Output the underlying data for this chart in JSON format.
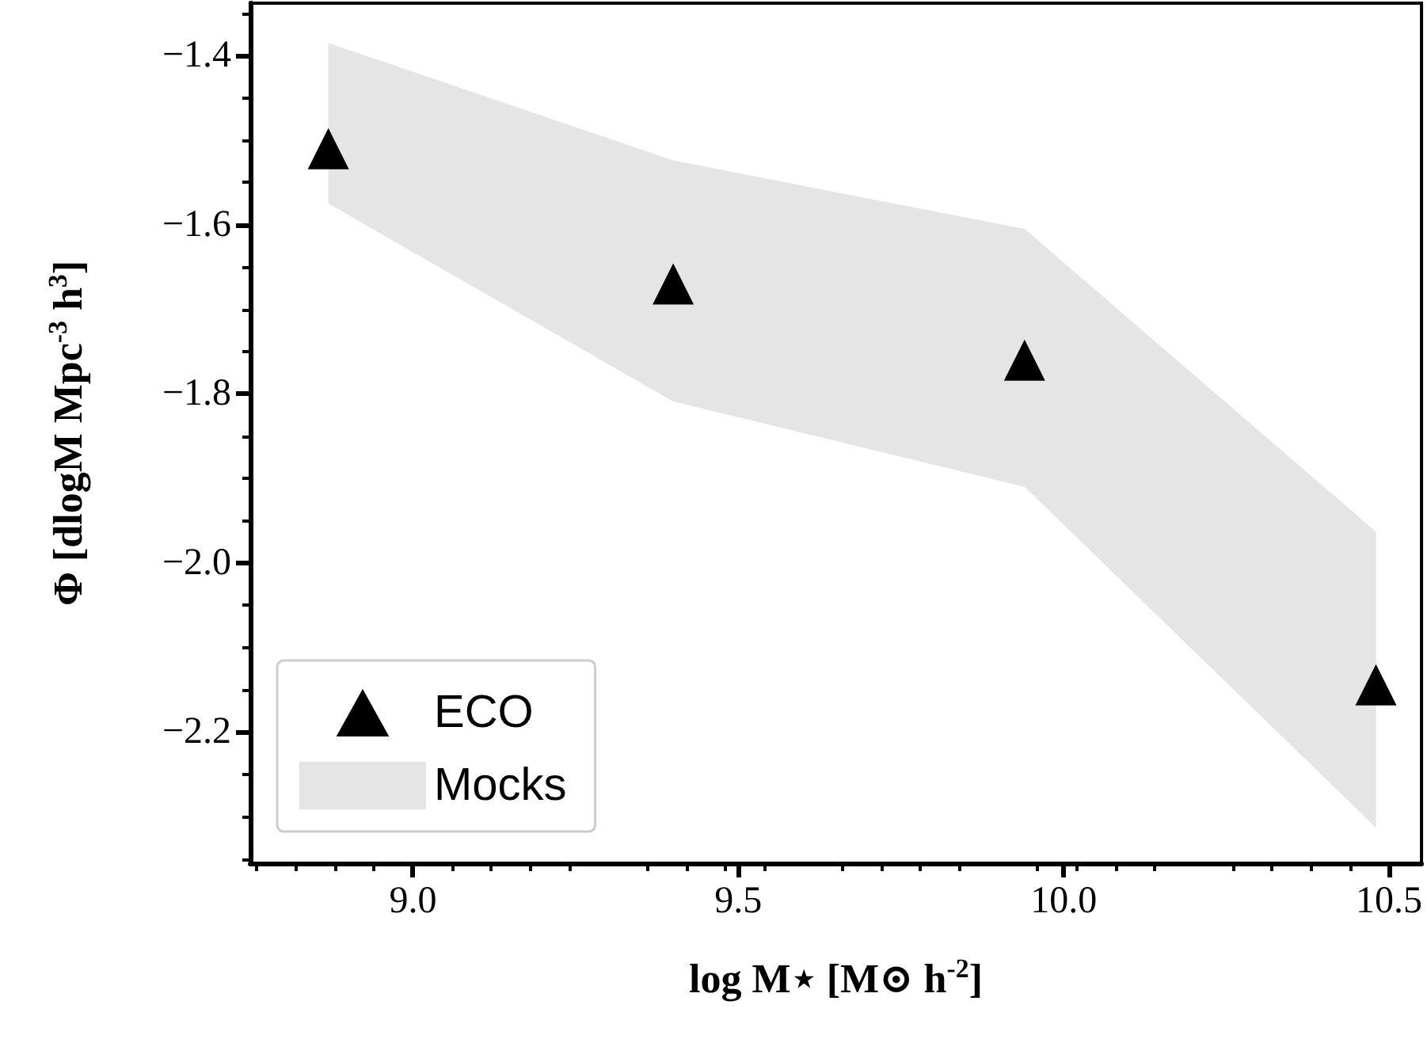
{
  "chart_data": {
    "type": "scatter",
    "xlabel": "log M⋆ [M⊙ h$^{-2}$]",
    "ylabel": "Φ [dlogM Mpc$^{-3}$ h$^{3}$]",
    "xlim": [
      8.75,
      10.55
    ],
    "xticks": [
      {
        "value": 9,
        "label": "9.0"
      },
      {
        "value": 9.5,
        "label": "9.5"
      },
      {
        "value": 10,
        "label": "10.0"
      },
      {
        "value": 10.5,
        "label": "10.5"
      }
    ],
    "ylim": [
      -2.355,
      -1.338
    ],
    "yticks": [
      {
        "value": -2.2,
        "label": "−2.2"
      },
      {
        "value": -2,
        "label": "−2.0"
      },
      {
        "value": -1.8,
        "label": "−1.8"
      },
      {
        "value": -1.6,
        "label": "−1.6"
      },
      {
        "value": -1.4,
        "label": "−1.4"
      }
    ],
    "legend": "bottom left",
    "marker": "triangle",
    "grid": false,
    "series": [
      {
        "name": "ECO",
        "color": "#000000",
        "x": [
          8.87,
          9.4,
          9.94,
          10.48
        ],
        "values": [
          -1.51,
          -1.67,
          -1.76,
          -2.144
        ]
      },
      {
        "name": "Mocks",
        "type": "area",
        "color": "#e5e5e5",
        "x": [
          8.87,
          9.4,
          9.94,
          10.48
        ],
        "values": [
          null,
          null,
          null,
          null
        ],
        "lower": [
          -1.575,
          -1.809,
          -1.91,
          -2.313
        ],
        "upper": [
          -1.385,
          -1.524,
          -1.605,
          -1.963
        ]
      }
    ]
  }
}
